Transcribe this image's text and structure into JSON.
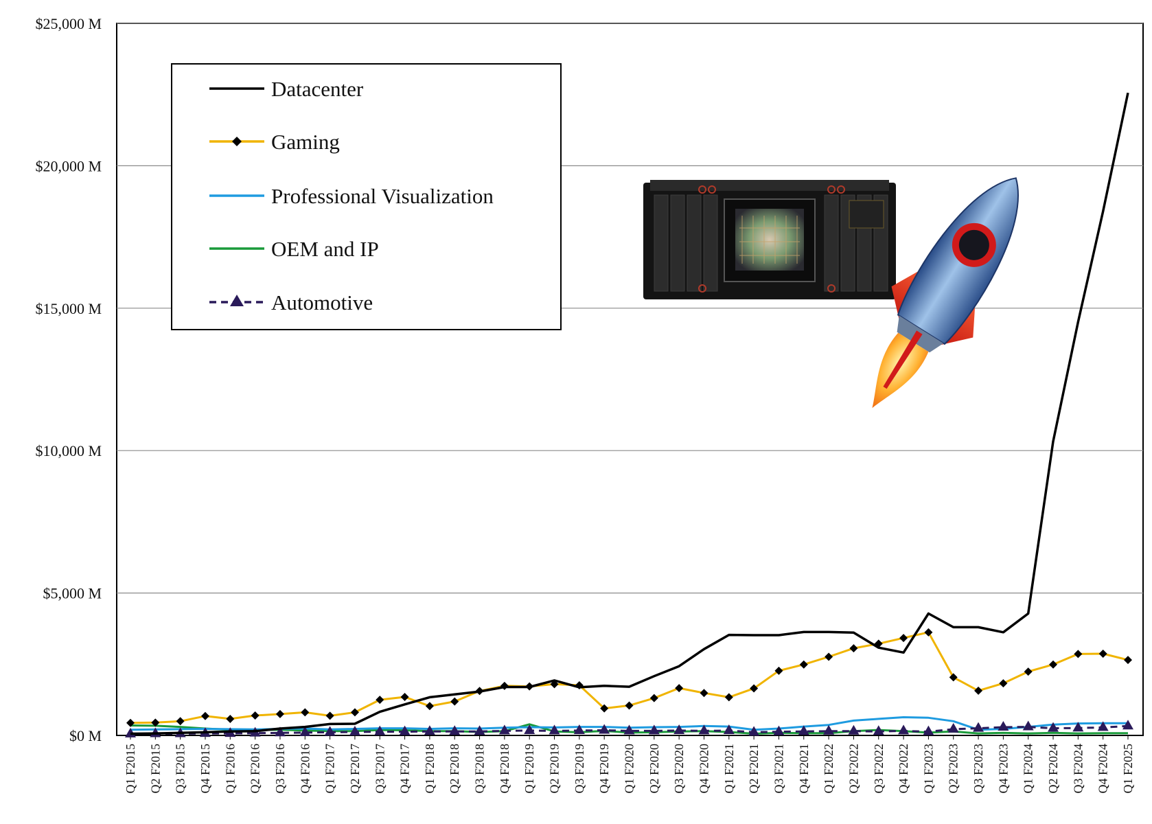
{
  "chart_data": {
    "type": "line",
    "title": "",
    "xlabel": "",
    "ylabel": "",
    "ylim": [
      0,
      25000
    ],
    "y_ticks": [
      {
        "value": 0,
        "label": "$0 M"
      },
      {
        "value": 5000,
        "label": "$5,000 M"
      },
      {
        "value": 10000,
        "label": "$10,000 M"
      },
      {
        "value": 15000,
        "label": "$15,000 M"
      },
      {
        "value": 20000,
        "label": "$20,000 M"
      },
      {
        "value": 25000,
        "label": "$25,000 M"
      }
    ],
    "grid": "horizontal",
    "legend_position": "top-left",
    "categories": [
      "Q1 F2015",
      "Q2 F2015",
      "Q3 F2015",
      "Q4 F2015",
      "Q1 F2016",
      "Q2 F2016",
      "Q3 F2016",
      "Q4 F2016",
      "Q1 F2017",
      "Q2 F2017",
      "Q3 F2017",
      "Q4 F2017",
      "Q1 F2018",
      "Q2 F2018",
      "Q3 F2018",
      "Q4 F2018",
      "Q1 F2019",
      "Q2 F2019",
      "Q3 F2019",
      "Q4 F2019",
      "Q1 F2020",
      "Q2 F2020",
      "Q3 F2020",
      "Q4 F2020",
      "Q1 F2021",
      "Q2 F2021",
      "Q3 F2021",
      "Q4 F2021",
      "Q1 F2022",
      "Q2 F2022",
      "Q3 F2022",
      "Q4 F2022",
      "Q1 F2023",
      "Q2 F2023",
      "Q3 F2023",
      "Q4 F2023",
      "Q1 F2024",
      "Q2 F2024",
      "Q3 F2024",
      "Q4 F2024",
      "Q1 F2025"
    ],
    "series": [
      {
        "name": "Datacenter",
        "color": "#000000",
        "marker": "none",
        "dash": "solid",
        "values": [
          60,
          70,
          90,
          110,
          140,
          150,
          240,
          300,
          400,
          410,
          830,
          1090,
          1340,
          1440,
          1540,
          1700,
          1700,
          1930,
          1690,
          1740,
          1710,
          2080,
          2430,
          3030,
          3530,
          3520,
          3520,
          3630,
          3630,
          3610,
          3080,
          2910,
          4280,
          3800,
          3800,
          3620,
          4280,
          10320,
          14510,
          18400,
          22560
        ]
      },
      {
        "name": "Gaming",
        "color": "#f0b400",
        "marker": "diamond",
        "dash": "solid",
        "values": [
          440,
          450,
          500,
          680,
          580,
          700,
          750,
          810,
          690,
          810,
          1250,
          1350,
          1030,
          1190,
          1560,
          1740,
          1720,
          1800,
          1760,
          950,
          1050,
          1310,
          1660,
          1490,
          1340,
          1650,
          2270,
          2490,
          2760,
          3060,
          3220,
          3420,
          3620,
          2040,
          1570,
          1830,
          2240,
          2490,
          2860,
          2870,
          2650
        ]
      },
      {
        "name": "Professional Visualization",
        "color": "#1e9be0",
        "marker": "none",
        "dash": "solid",
        "values": [
          200,
          210,
          220,
          230,
          220,
          210,
          230,
          240,
          210,
          230,
          250,
          250,
          230,
          250,
          240,
          270,
          290,
          280,
          300,
          300,
          270,
          290,
          300,
          330,
          310,
          200,
          240,
          310,
          370,
          520,
          580,
          640,
          620,
          500,
          200,
          230,
          300,
          380,
          420,
          430,
          430
        ]
      },
      {
        "name": "OEM and IP",
        "color": "#1a9a3a",
        "marker": "none",
        "dash": "solid",
        "values": [
          350,
          340,
          300,
          240,
          200,
          190,
          200,
          170,
          150,
          150,
          190,
          180,
          150,
          150,
          120,
          150,
          390,
          140,
          110,
          160,
          100,
          110,
          140,
          150,
          120,
          60,
          90,
          80,
          80,
          150,
          190,
          150,
          100,
          140,
          70,
          90,
          70,
          90,
          70,
          80,
          80
        ]
      },
      {
        "name": "Automotive",
        "color": "#2a1a5a",
        "marker": "triangle",
        "dash": "dashed",
        "values": [
          50,
          60,
          60,
          70,
          70,
          80,
          90,
          100,
          110,
          120,
          130,
          130,
          140,
          140,
          140,
          160,
          170,
          160,
          170,
          180,
          160,
          160,
          170,
          160,
          170,
          110,
          130,
          140,
          150,
          150,
          140,
          160,
          130,
          220,
          250,
          290,
          300,
          250,
          260,
          280,
          330
        ]
      }
    ]
  },
  "graphics": {
    "gpu_board": "gpu-board-image",
    "rocket": "rocket-icon"
  }
}
